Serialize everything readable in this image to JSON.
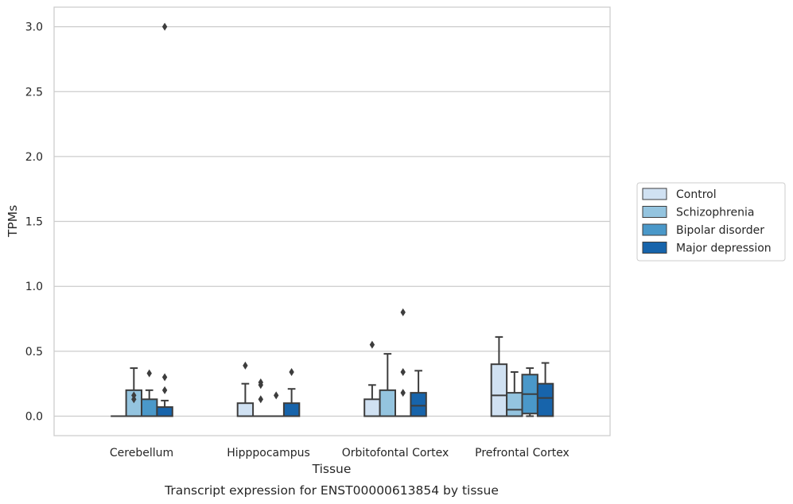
{
  "chart_data": {
    "type": "box",
    "xlabel": "Tissue",
    "ylabel": "TPMs",
    "caption": "Transcript expression for ENST00000613854 by tissue",
    "ylim": [
      -0.15,
      3.15
    ],
    "yticks": [
      0.0,
      0.5,
      1.0,
      1.5,
      2.0,
      2.5,
      3.0
    ],
    "ytick_labels": [
      "0.0",
      "0.5",
      "1.0",
      "1.5",
      "2.0",
      "2.5",
      "3.0"
    ],
    "grid": "horizontal",
    "legend_placement": "right",
    "categories": [
      "Cerebellum",
      "Hipppocampus",
      "Orbitofontal Cortex",
      "Prefrontal Cortex"
    ],
    "colors": [
      "#d0e1f2",
      "#94c4df",
      "#4a98c9",
      "#1764ab"
    ],
    "series": [
      {
        "name": "Control",
        "boxes": [
          {
            "q1": 0.0,
            "median": 0.0,
            "q3": 0.0,
            "whislo": 0.0,
            "whishi": 0.0,
            "fliers": []
          },
          {
            "q1": 0.0,
            "median": 0.0,
            "q3": 0.1,
            "whislo": 0.0,
            "whishi": 0.25,
            "fliers": [
              0.39
            ]
          },
          {
            "q1": 0.0,
            "median": 0.0,
            "q3": 0.13,
            "whislo": 0.0,
            "whishi": 0.24,
            "fliers": [
              0.55
            ]
          },
          {
            "q1": 0.0,
            "median": 0.16,
            "q3": 0.4,
            "whislo": 0.0,
            "whishi": 0.61,
            "fliers": []
          }
        ]
      },
      {
        "name": "Schizophrenia",
        "boxes": [
          {
            "q1": 0.0,
            "median": 0.0,
            "q3": 0.2,
            "whislo": 0.0,
            "whishi": 0.37,
            "fliers": [
              0.13,
              0.16
            ]
          },
          {
            "q1": 0.0,
            "median": 0.0,
            "q3": 0.0,
            "whislo": 0.0,
            "whishi": 0.0,
            "fliers": [
              0.13,
              0.24,
              0.26
            ]
          },
          {
            "q1": 0.0,
            "median": 0.0,
            "q3": 0.2,
            "whislo": 0.0,
            "whishi": 0.48,
            "fliers": []
          },
          {
            "q1": 0.0,
            "median": 0.05,
            "q3": 0.18,
            "whislo": 0.0,
            "whishi": 0.34,
            "fliers": []
          }
        ]
      },
      {
        "name": "Bipolar disorder",
        "boxes": [
          {
            "q1": 0.0,
            "median": 0.0,
            "q3": 0.13,
            "whislo": 0.0,
            "whishi": 0.2,
            "fliers": [
              0.33
            ]
          },
          {
            "q1": 0.0,
            "median": 0.0,
            "q3": 0.0,
            "whislo": 0.0,
            "whishi": 0.0,
            "fliers": [
              0.16
            ]
          },
          {
            "q1": 0.0,
            "median": 0.0,
            "q3": 0.0,
            "whislo": 0.0,
            "whishi": 0.0,
            "fliers": [
              0.18,
              0.34,
              0.8
            ]
          },
          {
            "q1": 0.02,
            "median": 0.17,
            "q3": 0.32,
            "whislo": 0.0,
            "whishi": 0.37,
            "fliers": []
          }
        ]
      },
      {
        "name": "Major depression",
        "boxes": [
          {
            "q1": 0.0,
            "median": 0.0,
            "q3": 0.07,
            "whislo": 0.0,
            "whishi": 0.12,
            "fliers": [
              0.2,
              0.3,
              3.0
            ]
          },
          {
            "q1": 0.0,
            "median": 0.0,
            "q3": 0.1,
            "whislo": 0.0,
            "whishi": 0.21,
            "fliers": [
              0.34
            ]
          },
          {
            "q1": 0.0,
            "median": 0.08,
            "q3": 0.18,
            "whislo": 0.0,
            "whishi": 0.35,
            "fliers": []
          },
          {
            "q1": 0.0,
            "median": 0.14,
            "q3": 0.25,
            "whislo": 0.0,
            "whishi": 0.41,
            "fliers": []
          }
        ]
      }
    ]
  }
}
